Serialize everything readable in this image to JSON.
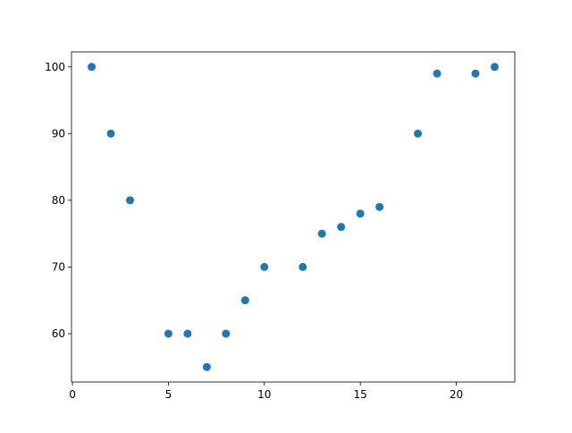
{
  "chart_data": {
    "type": "scatter",
    "title": "",
    "xlabel": "",
    "ylabel": "",
    "x": [
      1,
      2,
      3,
      5,
      6,
      7,
      8,
      9,
      10,
      12,
      13,
      14,
      15,
      16,
      18,
      19,
      21,
      22
    ],
    "y": [
      100,
      90,
      80,
      60,
      60,
      55,
      60,
      65,
      70,
      70,
      75,
      76,
      78,
      79,
      90,
      99,
      99,
      100
    ],
    "xlim": [
      -0.05,
      23.05
    ],
    "ylim": [
      52.75,
      102.25
    ],
    "xticks": [
      0,
      5,
      10,
      15,
      20
    ],
    "yticks": [
      60,
      70,
      80,
      90,
      100
    ],
    "xtick_labels": [
      "0",
      "5",
      "10",
      "15",
      "20"
    ],
    "ytick_labels": [
      "60",
      "70",
      "80",
      "90",
      "100"
    ],
    "grid": false,
    "marker_color": "#1f77b4"
  }
}
